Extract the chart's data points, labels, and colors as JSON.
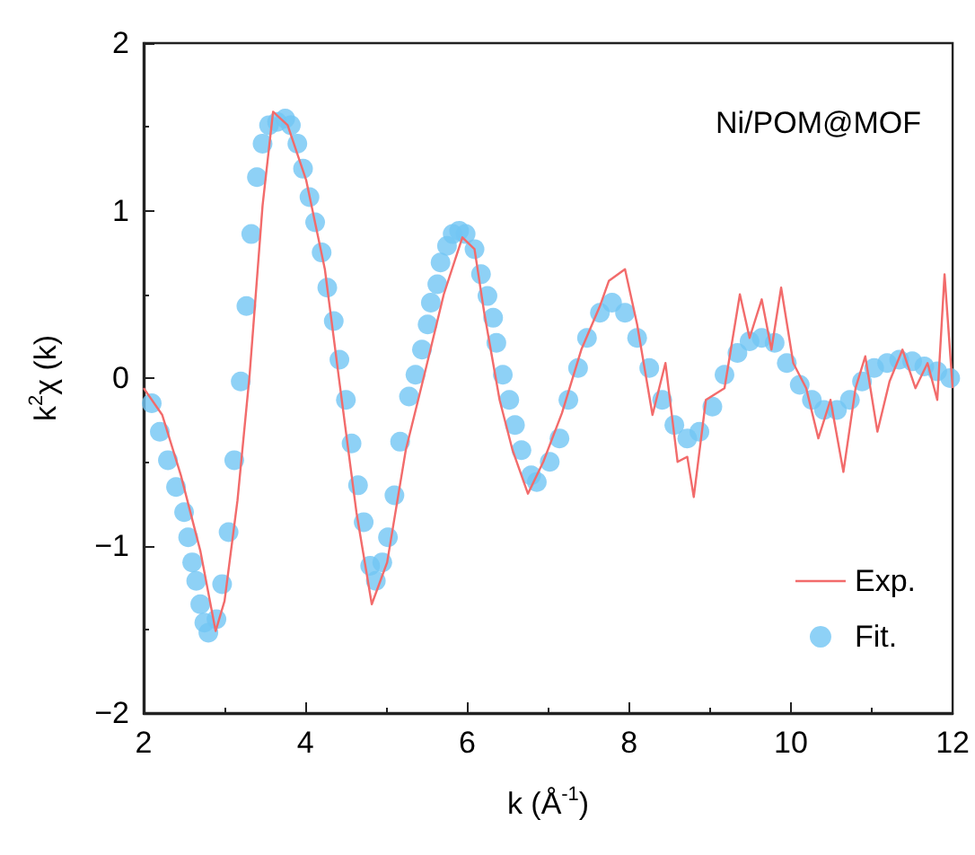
{
  "chart_data": {
    "type": "line",
    "xlabel": "k (Å$^{-1}$)",
    "ylabel": "k$^{2}$χ (k)",
    "annotations": [
      "Ni/POM@MOF"
    ],
    "xlim": [
      2,
      12
    ],
    "xticks": [
      2,
      4,
      6,
      8,
      10,
      12
    ],
    "ylim": [
      -2,
      2
    ],
    "yticks": [
      -2,
      -1,
      0,
      1,
      2
    ],
    "grid": false,
    "legend": "bottom right",
    "series": [
      {
        "name": "Exp.",
        "type": "line",
        "color": "#f26b6b",
        "marker": "none",
        "line_style": "solid",
        "x": [
          2.0,
          2.23,
          2.46,
          2.7,
          2.89,
          3.0,
          3.16,
          3.31,
          3.47,
          3.6,
          3.78,
          4.01,
          4.24,
          4.43,
          4.63,
          4.82,
          5.01,
          5.24,
          5.47,
          5.71,
          5.94,
          6.09,
          6.21,
          6.4,
          6.56,
          6.75,
          6.94,
          7.17,
          7.41,
          7.64,
          7.75,
          7.95,
          8.1,
          8.29,
          8.45,
          8.6,
          8.72,
          8.8,
          8.95,
          9.18,
          9.37,
          9.49,
          9.64,
          9.76,
          9.88,
          10.03,
          10.19,
          10.34,
          10.49,
          10.65,
          10.8,
          10.92,
          11.07,
          11.22,
          11.38,
          11.54,
          11.69,
          11.81,
          11.9,
          12.0
        ],
        "values": [
          -0.06,
          -0.22,
          -0.58,
          -1.03,
          -1.51,
          -1.33,
          -0.73,
          0.02,
          1.03,
          1.59,
          1.51,
          1.18,
          0.65,
          -0.06,
          -0.8,
          -1.35,
          -1.1,
          -0.43,
          0.02,
          0.5,
          0.84,
          0.77,
          0.39,
          -0.13,
          -0.43,
          -0.69,
          -0.5,
          -0.21,
          0.17,
          0.43,
          0.58,
          0.65,
          0.32,
          -0.22,
          0.09,
          -0.5,
          -0.47,
          -0.71,
          -0.13,
          -0.06,
          0.5,
          0.24,
          0.47,
          0.17,
          0.54,
          0.09,
          -0.06,
          -0.36,
          -0.13,
          -0.56,
          -0.06,
          0.13,
          -0.32,
          -0.02,
          0.17,
          -0.06,
          0.09,
          -0.13,
          0.62,
          -0.06
        ]
      },
      {
        "name": "Fit.",
        "type": "scatter",
        "color": "#72c6f4",
        "marker": "circle",
        "x": [
          2.1,
          2.2,
          2.3,
          2.4,
          2.5,
          2.55,
          2.6,
          2.65,
          2.7,
          2.75,
          2.8,
          2.9,
          2.97,
          3.05,
          3.12,
          3.2,
          3.27,
          3.33,
          3.4,
          3.47,
          3.55,
          3.65,
          3.75,
          3.82,
          3.9,
          3.97,
          4.05,
          4.12,
          4.2,
          4.27,
          4.35,
          4.42,
          4.5,
          4.57,
          4.65,
          4.72,
          4.8,
          4.87,
          4.95,
          5.02,
          5.1,
          5.17,
          5.28,
          5.36,
          5.44,
          5.51,
          5.55,
          5.63,
          5.67,
          5.75,
          5.82,
          5.9,
          5.98,
          6.09,
          6.17,
          6.25,
          6.32,
          6.36,
          6.44,
          6.52,
          6.59,
          6.67,
          6.79,
          6.86,
          7.02,
          7.14,
          7.25,
          7.37,
          7.48,
          7.64,
          7.79,
          7.95,
          8.1,
          8.25,
          8.41,
          8.56,
          8.72,
          8.87,
          9.03,
          9.18,
          9.34,
          9.49,
          9.64,
          9.8,
          9.95,
          10.11,
          10.26,
          10.41,
          10.57,
          10.73,
          10.88,
          11.03,
          11.19,
          11.34,
          11.5,
          11.65,
          11.81,
          11.97
        ],
        "values": [
          -0.15,
          -0.32,
          -0.49,
          -0.65,
          -0.8,
          -0.95,
          -1.1,
          -1.21,
          -1.35,
          -1.46,
          -1.52,
          -1.44,
          -1.23,
          -0.92,
          -0.49,
          -0.02,
          0.43,
          0.86,
          1.2,
          1.4,
          1.51,
          1.53,
          1.55,
          1.51,
          1.4,
          1.25,
          1.08,
          0.93,
          0.75,
          0.54,
          0.34,
          0.11,
          -0.13,
          -0.39,
          -0.64,
          -0.86,
          -1.12,
          -1.21,
          -1.1,
          -0.95,
          -0.7,
          -0.38,
          -0.11,
          0.02,
          0.17,
          0.32,
          0.45,
          0.56,
          0.69,
          0.79,
          0.86,
          0.88,
          0.86,
          0.77,
          0.62,
          0.49,
          0.36,
          0.21,
          0.02,
          -0.13,
          -0.28,
          -0.43,
          -0.58,
          -0.62,
          -0.5,
          -0.36,
          -0.13,
          0.06,
          0.24,
          0.39,
          0.45,
          0.39,
          0.24,
          0.06,
          -0.13,
          -0.28,
          -0.36,
          -0.32,
          -0.17,
          0.02,
          0.15,
          0.22,
          0.24,
          0.21,
          0.09,
          -0.04,
          -0.13,
          -0.19,
          -0.19,
          -0.13,
          -0.02,
          0.06,
          0.09,
          0.11,
          0.1,
          0.07,
          0.04,
          0.0
        ]
      }
    ]
  }
}
